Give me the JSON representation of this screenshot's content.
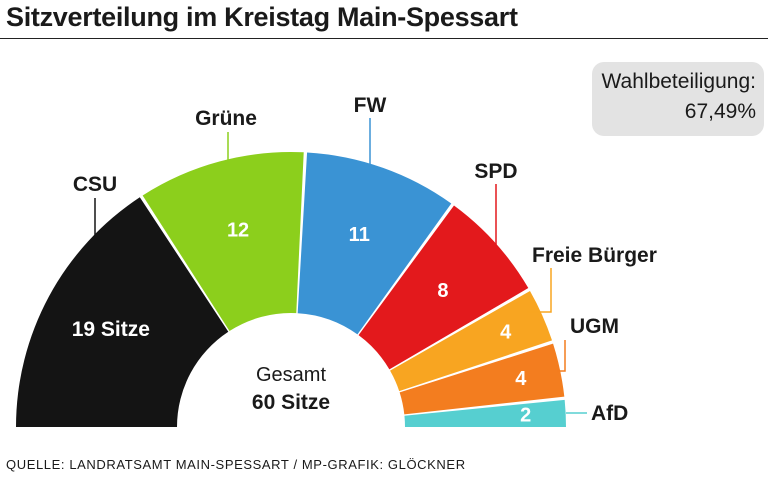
{
  "title": "Sitzverteilung im Kreistag Main-Spessart",
  "turnout": {
    "label": "Wahlbeteiligung:",
    "value": "67,49%"
  },
  "source": "QUELLE: LANDRATSAMT MAIN-SPESSART / MP-GRAFIK: GLÖCKNER",
  "center": {
    "line1": "Gesamt",
    "line2": "60 Sitze"
  },
  "chart_data": {
    "type": "parliament-semicircle",
    "title": "Sitzverteilung im Kreistag Main-Spessart",
    "total": 60,
    "categories": [
      "CSU",
      "Grüne",
      "FW",
      "SPD",
      "Freie Bürger",
      "UGM",
      "AfD"
    ],
    "values": [
      19,
      12,
      11,
      8,
      4,
      4,
      2
    ],
    "value_labels": [
      "19 Sitze",
      "12",
      "11",
      "8",
      "4",
      "4",
      "2"
    ],
    "colors": [
      "#141414",
      "#8ccf1c",
      "#3a93d4",
      "#e3191c",
      "#f8a521",
      "#f37d1f",
      "#56cfd0"
    ],
    "label_colors": [
      "#ffffff",
      "#ffffff",
      "#ffffff",
      "#ffffff",
      "#ffffff",
      "#ffffff",
      "#ffffff"
    ]
  }
}
